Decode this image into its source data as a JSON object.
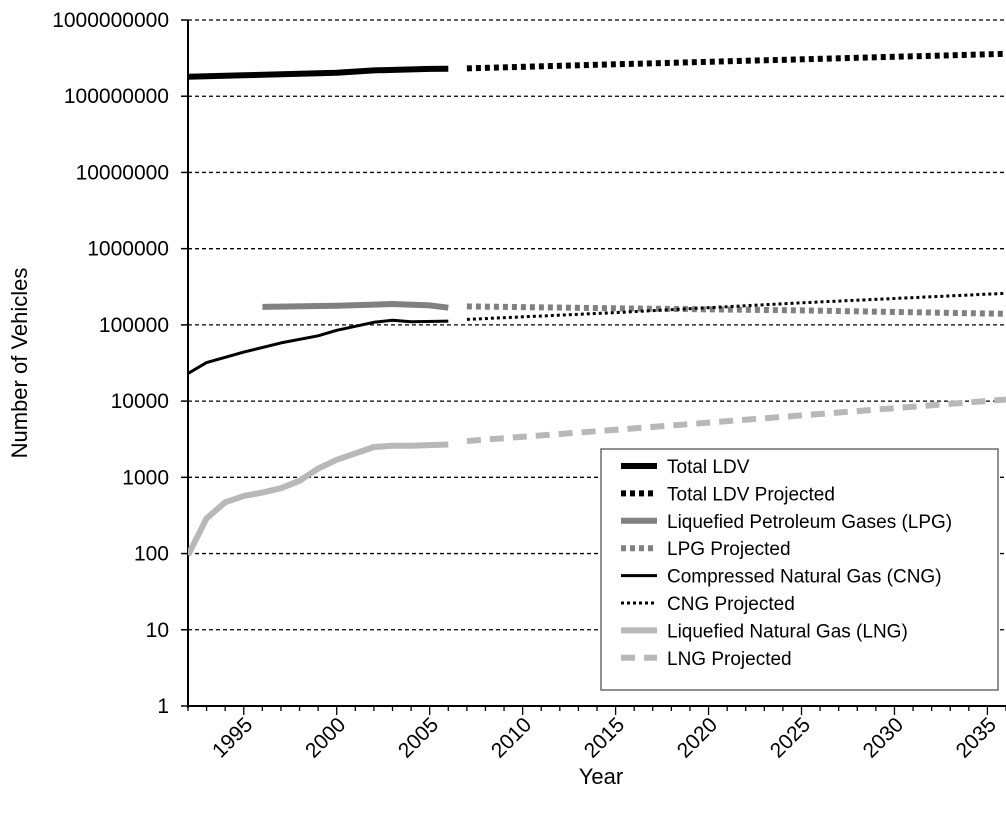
{
  "chart_data": {
    "type": "line",
    "title": "",
    "xlabel": "Year",
    "ylabel": "Number of Vehicles",
    "yscale": "log",
    "ylim": [
      1,
      1000000000
    ],
    "xlim": [
      1992,
      2036
    ],
    "y_ticks": [
      1,
      10,
      100,
      1000,
      10000,
      100000,
      1000000,
      10000000,
      100000000,
      1000000000
    ],
    "y_tick_labels": [
      "1",
      "10",
      "100",
      "1000",
      "10000",
      "100000",
      "1000000",
      "10000000",
      "100000000",
      "1000000000"
    ],
    "x_ticks": [
      1995,
      2000,
      2005,
      2010,
      2015,
      2020,
      2025,
      2030,
      2035
    ],
    "x_tick_labels": [
      "1995",
      "2000",
      "2005",
      "2010",
      "2015",
      "2020",
      "2025",
      "2030",
      "2035"
    ],
    "grid": "horizontal-dashed",
    "legend_position": "bottom-right",
    "series": [
      {
        "name": "Total LDV",
        "color": "#000000",
        "dash": "solid",
        "weight": "thick",
        "points": [
          [
            1992,
            180000000
          ],
          [
            1995,
            188000000
          ],
          [
            2000,
            203000000
          ],
          [
            2002,
            218000000
          ],
          [
            2005,
            228000000
          ],
          [
            2006,
            230000000
          ]
        ]
      },
      {
        "name": "Total LDV Projected",
        "color": "#000000",
        "dash": "dotted",
        "weight": "thick",
        "points": [
          [
            2007,
            232000000
          ],
          [
            2015,
            262000000
          ],
          [
            2025,
            305000000
          ],
          [
            2036,
            360000000
          ]
        ]
      },
      {
        "name": "Liquefied Petroleum Gases (LPG)",
        "color": "#808080",
        "dash": "solid",
        "weight": "thick",
        "points": [
          [
            1996,
            172000.0
          ],
          [
            2000,
            178000
          ],
          [
            2003,
            188000
          ],
          [
            2005,
            180000
          ],
          [
            2006,
            168000
          ]
        ]
      },
      {
        "name": "LPG Projected",
        "color": "#808080",
        "dash": "dotted",
        "weight": "thick",
        "points": [
          [
            2007,
            175000
          ],
          [
            2015,
            165000
          ],
          [
            2025,
            155000
          ],
          [
            2036,
            140000
          ]
        ]
      },
      {
        "name": "Compressed Natural Gas (CNG)",
        "color": "#000000",
        "dash": "solid",
        "weight": "thin",
        "points": [
          [
            1992,
            23000
          ],
          [
            1993,
            32000
          ],
          [
            1995,
            44000
          ],
          [
            1997,
            58000
          ],
          [
            1999,
            72000
          ],
          [
            2000,
            85000
          ],
          [
            2002,
            108000
          ],
          [
            2003,
            115000
          ],
          [
            2004,
            110000
          ],
          [
            2006,
            112000
          ]
        ]
      },
      {
        "name": "CNG Projected",
        "color": "#000000",
        "dash": "dotted",
        "weight": "thin",
        "points": [
          [
            2007,
            118000
          ],
          [
            2015,
            145000
          ],
          [
            2025,
            195000
          ],
          [
            2036,
            260000
          ]
        ]
      },
      {
        "name": "Liquefied Natural Gas (LNG)",
        "color": "#b8b8b8",
        "dash": "solid",
        "weight": "thick",
        "points": [
          [
            1992,
            95
          ],
          [
            1993,
            290
          ],
          [
            1994,
            470
          ],
          [
            1995,
            570
          ],
          [
            1996,
            630
          ],
          [
            1997,
            720
          ],
          [
            1998,
            900
          ],
          [
            1999,
            1300
          ],
          [
            2000,
            1700
          ],
          [
            2002,
            2500
          ],
          [
            2003,
            2600
          ],
          [
            2004,
            2600
          ],
          [
            2006,
            2700
          ]
        ]
      },
      {
        "name": "LNG Projected",
        "color": "#b8b8b8",
        "dash": "dashed",
        "weight": "thick",
        "points": [
          [
            2007,
            3000
          ],
          [
            2015,
            4200
          ],
          [
            2025,
            6500
          ],
          [
            2036,
            10500
          ]
        ]
      }
    ]
  }
}
